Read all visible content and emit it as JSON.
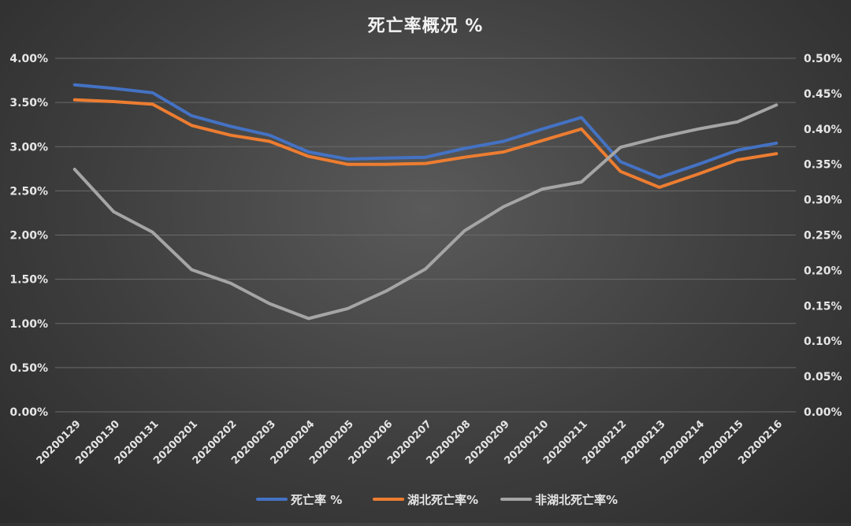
{
  "chart_data": {
    "type": "line",
    "title": "死亡率概况 %",
    "x": [
      "20200129",
      "20200130",
      "20200131",
      "20200201",
      "20200202",
      "20200203",
      "20200204",
      "20200205",
      "20200206",
      "20200207",
      "20200208",
      "20200209",
      "20200210",
      "20200211",
      "20200212",
      "20200213",
      "20200214",
      "20200215",
      "20200216"
    ],
    "y_left": {
      "ticks": [
        "0.00%",
        "0.50%",
        "1.00%",
        "1.50%",
        "2.00%",
        "2.50%",
        "3.00%",
        "3.50%",
        "4.00%"
      ],
      "ylim": [
        0,
        4.0
      ],
      "unit": "%"
    },
    "y_right": {
      "ticks": [
        "0.00%",
        "0.05%",
        "0.10%",
        "0.15%",
        "0.20%",
        "0.25%",
        "0.30%",
        "0.35%",
        "0.40%",
        "0.45%",
        "0.50%"
      ],
      "ylim": [
        0,
        0.5
      ],
      "unit": "%"
    },
    "series": [
      {
        "name": "死亡率 %",
        "axis": "left",
        "color": "#4472c4",
        "values": [
          3.7,
          3.66,
          3.61,
          3.35,
          3.23,
          3.13,
          2.94,
          2.86,
          2.87,
          2.88,
          2.98,
          3.06,
          3.2,
          3.33,
          2.83,
          2.65,
          2.8,
          2.96,
          3.04
        ]
      },
      {
        "name": "湖北死亡率%",
        "axis": "left",
        "color": "#ed7d31",
        "values": [
          3.53,
          3.51,
          3.48,
          3.24,
          3.13,
          3.06,
          2.89,
          2.8,
          2.8,
          2.81,
          2.88,
          2.94,
          3.07,
          3.2,
          2.72,
          2.54,
          2.69,
          2.85,
          2.92
        ]
      },
      {
        "name": "非湖北死亡率%",
        "axis": "right",
        "color": "#a5a5a5",
        "values": [
          0.343,
          0.283,
          0.254,
          0.201,
          0.182,
          0.153,
          0.132,
          0.146,
          0.171,
          0.202,
          0.256,
          0.29,
          0.315,
          0.325,
          0.374,
          0.388,
          0.4,
          0.41,
          0.434
        ]
      }
    ],
    "grid": true,
    "legend": "bottom"
  }
}
